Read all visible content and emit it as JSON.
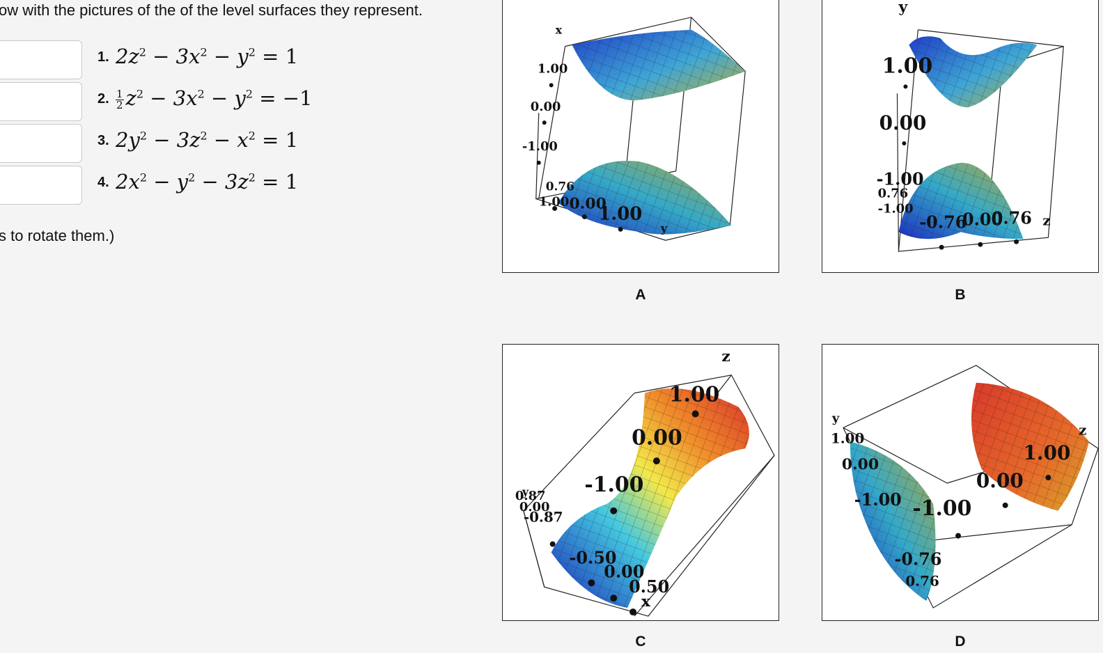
{
  "instructions": "ow with the pictures of the of the level surfaces they represent.",
  "hint": "s to rotate them.)",
  "equations": [
    {
      "num": "1.",
      "text_parts": [
        "2z",
        "2",
        " − 3x",
        "2",
        " − y",
        "2",
        " = 1"
      ],
      "answer": ""
    },
    {
      "num": "2.",
      "frac_num": "1",
      "frac_den": "2",
      "text_parts": [
        "z",
        "2",
        " − 3x",
        "2",
        " − y",
        "2",
        " = −1"
      ],
      "answer": ""
    },
    {
      "num": "3.",
      "text_parts": [
        "2y",
        "2",
        " − 3z",
        "2",
        " − x",
        "2",
        " = 1"
      ],
      "answer": ""
    },
    {
      "num": "4.",
      "text_parts": [
        "2x",
        "2",
        " − y",
        "2",
        " − 3z",
        "2",
        " = 1"
      ],
      "answer": ""
    }
  ],
  "panels": [
    {
      "label": "A",
      "axis_labels": [
        "x",
        "y"
      ],
      "ticks": [
        "1.00",
        "0.00",
        "-1.00",
        "0.76",
        "1.00",
        "0.00",
        "1.00"
      ]
    },
    {
      "label": "B",
      "axis_labels": [
        "y",
        "z"
      ],
      "ticks": [
        "1.00",
        "0.00",
        "-1.00",
        "0.76",
        "-1.00",
        "-0.76",
        "0.00",
        "0.76"
      ]
    },
    {
      "label": "C",
      "axis_labels": [
        "z",
        "y",
        "x"
      ],
      "ticks": [
        "1.00",
        "0.00",
        "-1.00",
        "0.87",
        "0.00",
        "-0.87",
        "-0.50",
        "0.00",
        "0.50"
      ]
    },
    {
      "label": "D",
      "axis_labels": [
        "y",
        "z"
      ],
      "ticks": [
        "1.00",
        "0.00",
        "-1.00",
        "1.00",
        "0.00",
        "-1.00",
        "-0.76",
        "0.76"
      ]
    }
  ],
  "colors": {
    "background": "#f4f4f4",
    "panel_border": "#222222",
    "answer_border": "#c9c9c9"
  }
}
